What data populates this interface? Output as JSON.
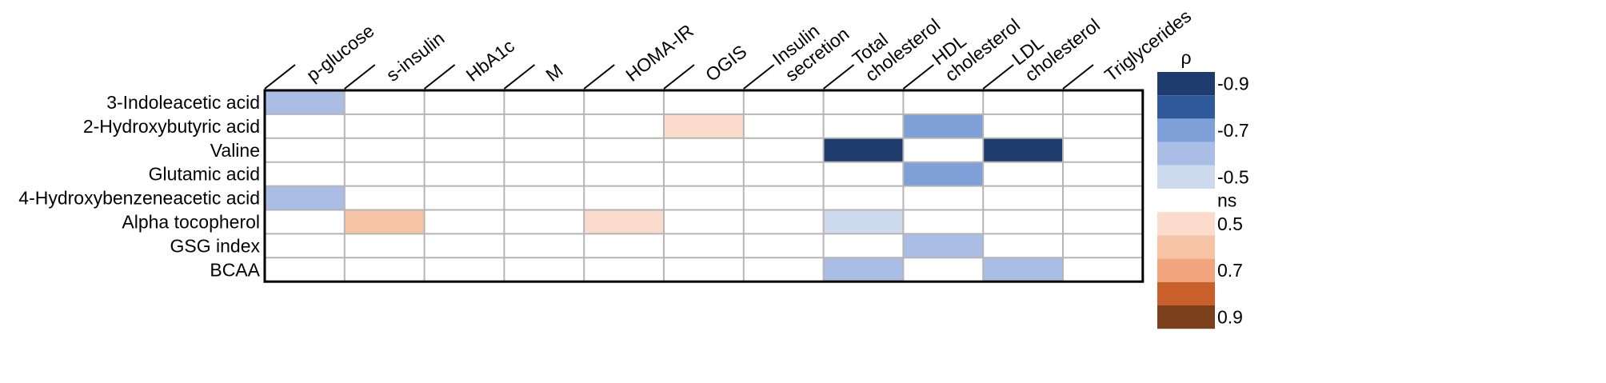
{
  "chart_data": {
    "type": "heatmap",
    "columns": [
      "p-glucose",
      "s-insulin",
      "HbA1c",
      "M",
      "HOMA-IR",
      "OGIS",
      "Insulin\nsecretion",
      "Total\ncholesterol",
      "HDL\ncholesterol",
      "LDL\ncholesterol",
      "Triglycerides"
    ],
    "rows": [
      "3-Indoleacetic acid",
      "2-Hydroxybutyric acid",
      "Valine",
      "Glutamic acid",
      "4-Hydroxybenzeneacetic acid",
      "Alpha tocopherol",
      "GSG index",
      "BCAA"
    ],
    "cells": [
      [
        -0.6,
        null,
        null,
        null,
        null,
        null,
        null,
        null,
        null,
        null,
        null
      ],
      [
        null,
        null,
        null,
        null,
        null,
        0.45,
        null,
        null,
        -0.7,
        null,
        null
      ],
      [
        null,
        null,
        null,
        null,
        null,
        null,
        null,
        -0.9,
        null,
        -0.9,
        null
      ],
      [
        null,
        null,
        null,
        null,
        null,
        null,
        null,
        null,
        -0.7,
        null,
        null
      ],
      [
        -0.6,
        null,
        null,
        null,
        null,
        null,
        null,
        null,
        null,
        null,
        null
      ],
      [
        null,
        0.55,
        null,
        null,
        0.45,
        null,
        null,
        -0.5,
        null,
        null,
        null
      ],
      [
        null,
        null,
        null,
        null,
        null,
        null,
        null,
        null,
        -0.6,
        null,
        null
      ],
      [
        null,
        null,
        null,
        null,
        null,
        null,
        null,
        -0.6,
        null,
        -0.6,
        null
      ]
    ],
    "legend": {
      "title": "ρ",
      "position": "right",
      "swatches": [
        {
          "value": -0.9,
          "color": "#1f3c6e"
        },
        {
          "value": -0.8,
          "color": "#2e5a9c"
        },
        {
          "value": -0.7,
          "color": "#7e9fd8"
        },
        {
          "value": -0.6,
          "color": "#a9bde5"
        },
        {
          "value": -0.5,
          "color": "#cdd9ec"
        },
        {
          "value": null,
          "color": "#ffffff"
        },
        {
          "value": 0.5,
          "color": "#fbdccc"
        },
        {
          "value": 0.6,
          "color": "#f6c3a4"
        },
        {
          "value": 0.7,
          "color": "#f0a57c"
        },
        {
          "value": 0.8,
          "color": "#c9602c"
        },
        {
          "value": 0.9,
          "color": "#7b3f1c"
        }
      ],
      "tick_labels": [
        "-0.9",
        "-0.7",
        "-0.5",
        "ns",
        "0.5",
        "0.7",
        "0.9"
      ]
    }
  }
}
